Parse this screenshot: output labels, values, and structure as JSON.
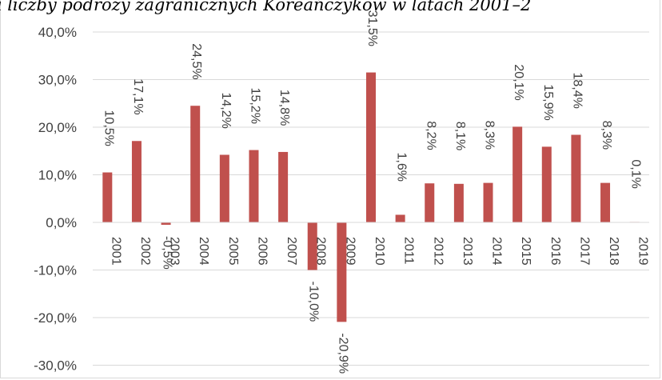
{
  "chart_data": {
    "type": "bar",
    "title": "a liczby podróży zagranicznych Koreańczyków w latach 2001–2",
    "categories": [
      "2001",
      "2002",
      "2003",
      "2004",
      "2005",
      "2006",
      "2007",
      "2008",
      "2009",
      "2010",
      "2011",
      "2012",
      "2013",
      "2014",
      "2015",
      "2016",
      "2017",
      "2018",
      "2019"
    ],
    "values": [
      10.5,
      17.1,
      -0.5,
      24.5,
      14.2,
      15.2,
      14.8,
      -10.0,
      -20.9,
      31.5,
      1.6,
      8.2,
      8.1,
      8.3,
      20.1,
      15.9,
      18.4,
      8.3,
      0.1
    ],
    "value_labels": [
      "10,5%",
      "17,1%",
      "-0,5%",
      "24,5%",
      "14,2%",
      "15,2%",
      "14,8%",
      "-10,0%",
      "-20,9%",
      "31,5%",
      "1,6%",
      "8,2%",
      "8,1%",
      "8,3%",
      "20,1%",
      "15,9%",
      "18,4%",
      "8,3%",
      "0,1%"
    ],
    "y_ticks": [
      40,
      30,
      20,
      10,
      0,
      -10,
      -20,
      -30
    ],
    "y_tick_labels": [
      "40,0%",
      "30,0%",
      "20,0%",
      "10,0%",
      "0,0%",
      "-10,0%",
      "-20,0%",
      "-30,0%"
    ],
    "ylim": [
      -30,
      40
    ],
    "grid": true,
    "bar_color": "#c0504d",
    "grid_color": "#d9d9d9"
  }
}
